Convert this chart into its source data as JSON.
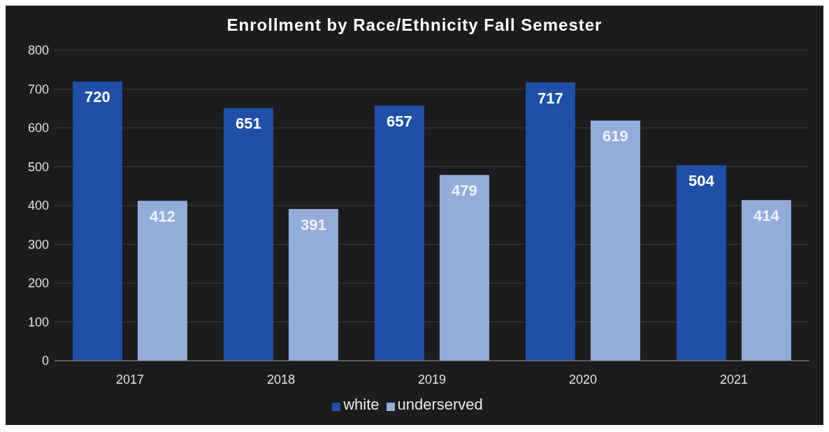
{
  "chart_data": {
    "type": "bar",
    "title": "Enrollment by Race/Ethnicity Fall Semester",
    "categories": [
      "2017",
      "2018",
      "2019",
      "2020",
      "2021"
    ],
    "series": [
      {
        "name": "white",
        "color": "#1f4fa6",
        "values": [
          720,
          651,
          657,
          717,
          504
        ]
      },
      {
        "name": "underserved",
        "color": "#93acd9",
        "values": [
          412,
          391,
          479,
          619,
          414
        ]
      }
    ],
    "ylim": [
      0,
      800
    ],
    "yticks": [
      0,
      100,
      200,
      300,
      400,
      500,
      600,
      700,
      800
    ],
    "grid": "y",
    "legend": "bottom",
    "data_labels": true
  }
}
